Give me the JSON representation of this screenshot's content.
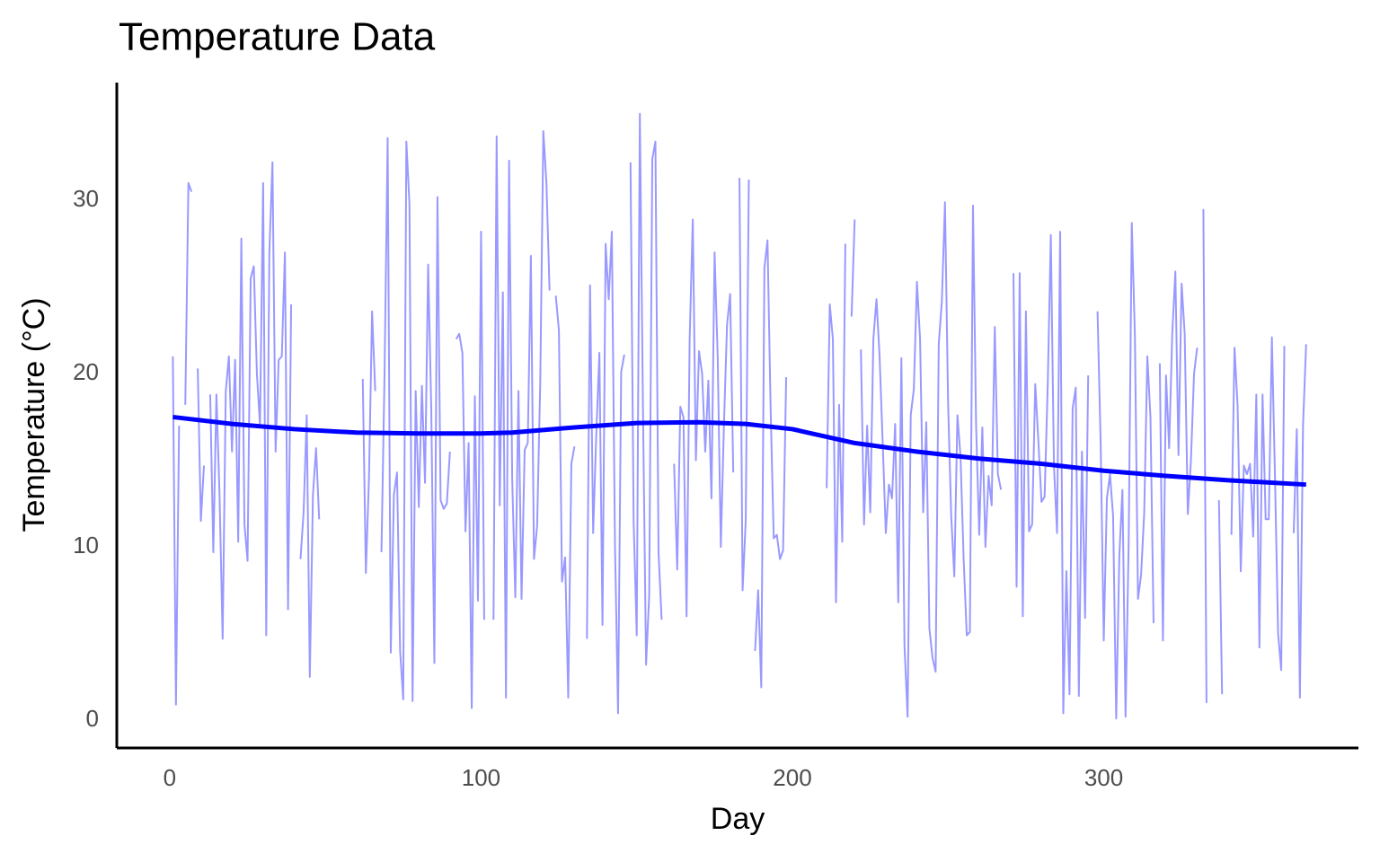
{
  "chart_data": {
    "type": "line",
    "title": "Temperature Data",
    "x_label": "Day",
    "y_label": "Temperature (°C)",
    "xlim": [
      -17,
      381.8
    ],
    "xticks": [
      0,
      100,
      200,
      300
    ],
    "ylim": [
      -1.6,
      36.8
    ],
    "yticks": [
      0,
      10,
      20,
      30
    ],
    "grid": false,
    "series": [
      {
        "color": "#9999ff",
        "x": [
          1,
          2,
          3,
          4,
          5,
          6,
          7,
          8,
          9,
          10,
          11,
          12,
          13,
          14,
          15,
          16,
          17,
          18,
          19,
          20,
          21,
          22,
          23,
          24,
          25,
          26,
          27,
          28,
          29,
          30,
          31,
          32,
          33,
          34,
          35,
          36,
          37,
          38,
          39,
          40,
          41,
          42,
          43,
          44,
          45,
          46,
          47,
          48,
          49,
          50,
          51,
          52,
          53,
          54,
          55,
          56,
          57,
          58,
          59,
          60,
          61,
          62,
          63,
          64,
          65,
          66,
          67,
          68,
          69,
          70,
          71,
          72,
          73,
          74,
          75,
          76,
          77,
          78,
          79,
          80,
          81,
          82,
          83,
          84,
          85,
          86,
          87,
          88,
          89,
          90,
          91,
          92,
          93,
          94,
          95,
          96,
          97,
          98,
          99,
          100,
          101,
          102,
          103,
          104,
          105,
          106,
          107,
          108,
          109,
          110,
          111,
          112,
          113,
          114,
          115,
          116,
          117,
          118,
          119,
          120,
          121,
          122,
          123,
          124,
          125,
          126,
          127,
          128,
          129,
          130,
          131,
          132,
          133,
          134,
          135,
          136,
          137,
          138,
          139,
          140,
          141,
          142,
          143,
          144,
          145,
          146,
          147,
          148,
          149,
          150,
          151,
          152,
          153,
          154,
          155,
          156,
          157,
          158,
          159,
          160,
          161,
          162,
          163,
          164,
          165,
          166,
          167,
          168,
          169,
          170,
          171,
          172,
          173,
          174,
          175,
          176,
          177,
          178,
          179,
          180,
          181,
          182,
          183,
          184,
          185,
          186,
          187,
          188,
          189,
          190,
          191,
          192,
          193,
          194,
          195,
          196,
          197,
          198,
          199,
          200,
          201,
          202,
          203,
          204,
          205,
          206,
          207,
          208,
          209,
          210,
          211,
          212,
          213,
          214,
          215,
          216,
          217,
          218,
          219,
          220,
          221,
          222,
          223,
          224,
          225,
          226,
          227,
          228,
          229,
          230,
          231,
          232,
          233,
          234,
          235,
          236,
          237,
          238,
          239,
          240,
          241,
          242,
          243,
          244,
          245,
          246,
          247,
          248,
          249,
          250,
          251,
          252,
          253,
          254,
          255,
          256,
          257,
          258,
          259,
          260,
          261,
          262,
          263,
          264,
          265,
          266,
          267,
          268,
          269,
          270,
          271,
          272,
          273,
          274,
          275,
          276,
          277,
          278,
          279,
          280,
          281,
          282,
          283,
          284,
          285,
          286,
          287,
          288,
          289,
          290,
          291,
          292,
          293,
          294,
          295,
          296,
          297,
          298,
          299,
          300,
          301,
          302,
          303,
          304,
          305,
          306,
          307,
          308,
          309,
          310,
          311,
          312,
          313,
          314,
          315,
          316,
          317,
          318,
          319,
          320,
          321,
          322,
          323,
          324,
          325,
          326,
          327,
          328,
          329,
          330,
          331,
          332,
          333,
          334,
          335,
          336,
          337,
          338,
          339,
          340,
          341,
          342,
          343,
          344,
          345,
          346,
          347,
          348,
          349,
          350,
          351,
          352,
          353,
          354,
          355,
          356,
          357,
          358,
          359,
          360,
          361,
          362,
          363,
          364,
          365
        ],
        "values": [
          21,
          0.9,
          17,
          null,
          18.2,
          31,
          30.5,
          null,
          20.3,
          11.5,
          14.7,
          null,
          18.8,
          9.7,
          18.8,
          13,
          4.7,
          19,
          21,
          15.5,
          20.8,
          10.3,
          27.8,
          11.3,
          9.2,
          25.5,
          26.2,
          20,
          17,
          31,
          4.9,
          27,
          32.2,
          15.5,
          20.8,
          21,
          27,
          6.4,
          24,
          null,
          null,
          9.3,
          12,
          17.6,
          2.5,
          13,
          15.7,
          11.6,
          null,
          null,
          null,
          null,
          null,
          null,
          null,
          null,
          null,
          null,
          null,
          null,
          null,
          19.7,
          8.5,
          14,
          23.6,
          19,
          null,
          9.7,
          20,
          33.6,
          3.9,
          13,
          14.3,
          4,
          1.2,
          33.4,
          29.8,
          1.1,
          19,
          12.3,
          19.3,
          13.7,
          26.3,
          18,
          3.3,
          30.2,
          12.7,
          12.2,
          12.5,
          15.5,
          null,
          22,
          22.3,
          21.2,
          10.9,
          16,
          0.7,
          18.7,
          6.9,
          28.2,
          5.8,
          null,
          null,
          5.8,
          33.7,
          12.4,
          24.7,
          1.3,
          32.3,
          13.9,
          7.1,
          19,
          7,
          15.6,
          16,
          26.8,
          9.3,
          11.2,
          19.4,
          34,
          31,
          24.8,
          null,
          24.5,
          22.5,
          8,
          9.4,
          1.3,
          14.8,
          15.8,
          null,
          null,
          null,
          4.7,
          25.1,
          10.8,
          16.5,
          21.2,
          5.5,
          27.5,
          24.3,
          28.2,
          10.3,
          0.4,
          20.1,
          21.1,
          null,
          32.2,
          11.5,
          4.9,
          35,
          18,
          3.2,
          7.2,
          32.4,
          33.4,
          9.7,
          5.8,
          null,
          26.7,
          null,
          14.8,
          8.7,
          18.1,
          17.5,
          6,
          22,
          28.9,
          15,
          21.3,
          20,
          15.5,
          19.6,
          12.8,
          27,
          21,
          10,
          17,
          22.8,
          24.6,
          14.3,
          null,
          31.3,
          7.5,
          11.5,
          31.2,
          null,
          4,
          7.5,
          1.9,
          26.1,
          27.7,
          18,
          10.5,
          10.7,
          9.3,
          9.8,
          19.8,
          null,
          null,
          null,
          null,
          null,
          null,
          null,
          null,
          null,
          null,
          null,
          null,
          13.4,
          24,
          22,
          6.8,
          18.2,
          10.3,
          27.5,
          null,
          23.3,
          28.9,
          null,
          21.4,
          11.3,
          17,
          12,
          22,
          24.3,
          21,
          16,
          10.8,
          13.6,
          12.8,
          17.1,
          6.8,
          20.9,
          4.3,
          0.2,
          17.6,
          19.1,
          25.3,
          22,
          12,
          17.2,
          5.3,
          3.6,
          2.8,
          21.7,
          24.2,
          29.9,
          18.3,
          11.8,
          8.3,
          17.6,
          15.2,
          9.3,
          4.9,
          5.1,
          29.7,
          17,
          10.7,
          16.9,
          10,
          14.1,
          12.4,
          22.7,
          14.2,
          13.3,
          null,
          null,
          null,
          25.8,
          7.7,
          25.8,
          6,
          23.6,
          10.9,
          11.3,
          19.4,
          16.1,
          12.6,
          12.9,
          19.3,
          28,
          14.7,
          10.8,
          28.2,
          0.4,
          8.6,
          1.5,
          18,
          19.2,
          1.4,
          15.5,
          5.9,
          19.9,
          null,
          null,
          23.6,
          16,
          4.6,
          12.8,
          14.2,
          11.8,
          0.1,
          9.5,
          13.3,
          0.2,
          10.2,
          28.7,
          22.2,
          7,
          8.4,
          12,
          21,
          17.5,
          5.6,
          null,
          20.6,
          4.6,
          19.9,
          15.7,
          22.3,
          25.9,
          15.3,
          25.2,
          22.3,
          11.9,
          15,
          20,
          21.5,
          null,
          29.5,
          1,
          null,
          null,
          null,
          12.7,
          1.5,
          null,
          null,
          10.7,
          21.5,
          18.1,
          8.6,
          14.7,
          14.2,
          14.8,
          10.6,
          18.8,
          4.2,
          18.8,
          11.6,
          11.6,
          22.1,
          14,
          5,
          2.9,
          21.6,
          null,
          null,
          10.8,
          16.8,
          1.3,
          17,
          21.7
        ],
        "width": 2
      },
      {
        "color": "#0000ff",
        "x": [
          1,
          20,
          40,
          60,
          80,
          100,
          110,
          130,
          150,
          170,
          185,
          200,
          220,
          240,
          260,
          280,
          300,
          320,
          340,
          365
        ],
        "values": [
          17.5,
          17.1,
          16.8,
          16.6,
          16.55,
          16.55,
          16.6,
          16.9,
          17.15,
          17.2,
          17.1,
          16.8,
          16.0,
          15.5,
          15.1,
          14.8,
          14.4,
          14.1,
          13.85,
          13.6
        ],
        "width": 5
      }
    ]
  }
}
